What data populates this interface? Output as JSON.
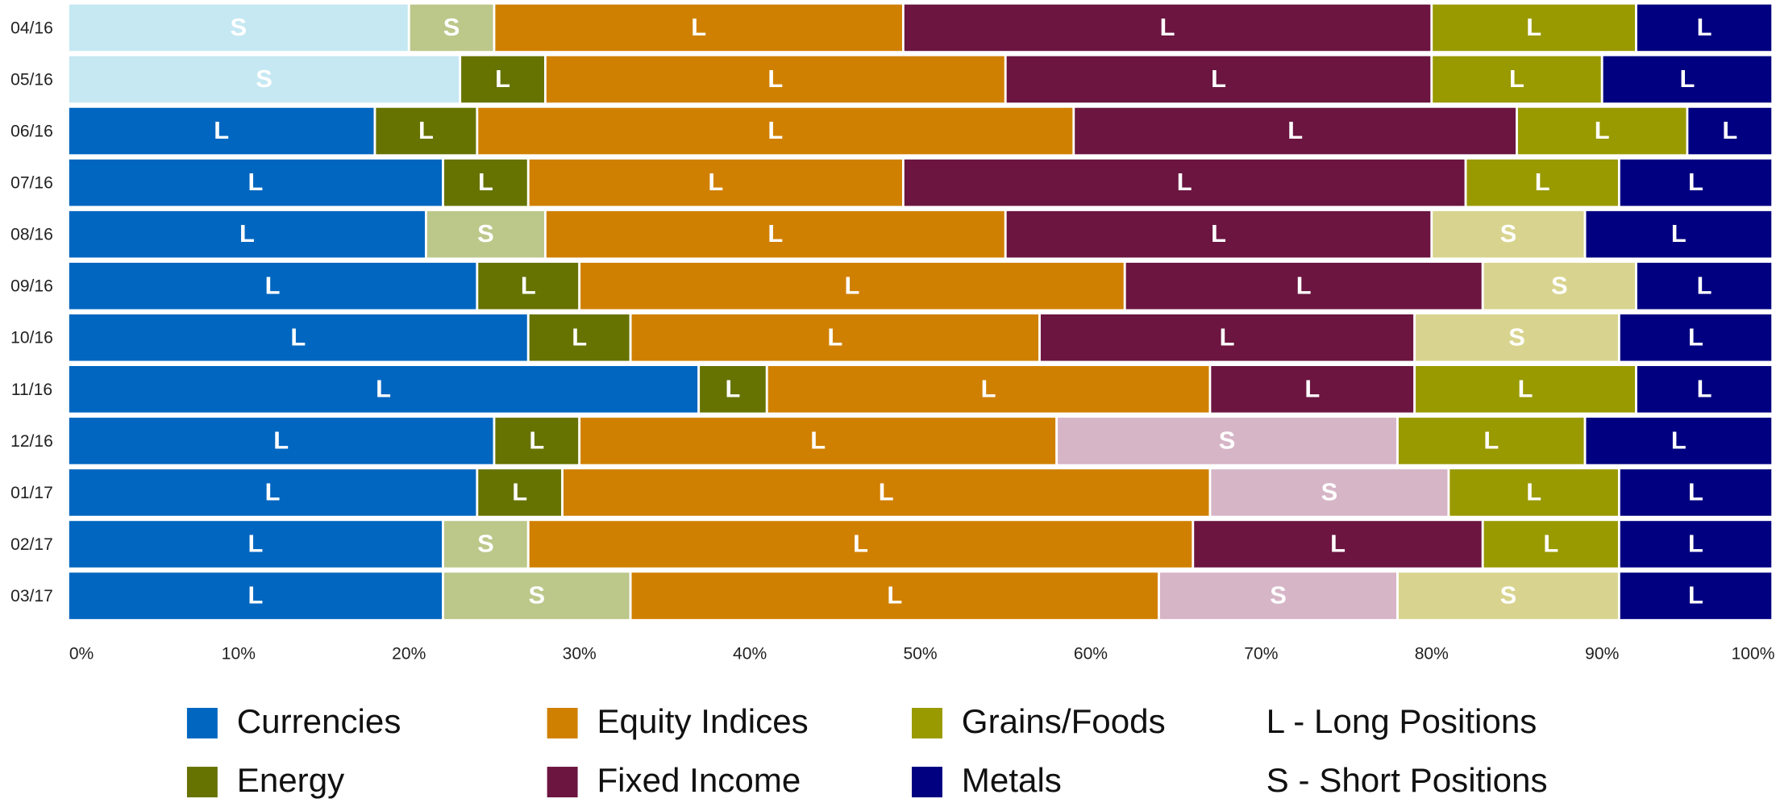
{
  "chart_data": {
    "type": "stacked-barh",
    "categories": [
      "04/16",
      "05/16",
      "06/16",
      "07/16",
      "08/16",
      "09/16",
      "10/16",
      "11/16",
      "12/16",
      "01/17",
      "02/17",
      "03/17"
    ],
    "series": [
      {
        "name": "Currencies",
        "color": "#0066c0",
        "short_color": "#c5e8f2",
        "values": [
          20,
          23,
          18,
          22,
          21,
          24,
          27,
          37,
          25,
          24,
          22,
          22
        ],
        "positions": [
          "S",
          "S",
          "L",
          "L",
          "L",
          "L",
          "L",
          "L",
          "L",
          "L",
          "L",
          "L"
        ]
      },
      {
        "name": "Energy",
        "color": "#667300",
        "short_color": "#bcc78a",
        "values": [
          5,
          5,
          6,
          5,
          7,
          6,
          6,
          4,
          5,
          5,
          5,
          11
        ],
        "positions": [
          "S",
          "L",
          "L",
          "L",
          "S",
          "L",
          "L",
          "L",
          "L",
          "L",
          "S",
          "S"
        ]
      },
      {
        "name": "Equity Indices",
        "color": "#d08000",
        "values": [
          24,
          27,
          35,
          22,
          27,
          32,
          24,
          26,
          28,
          38,
          39,
          31
        ],
        "positions": [
          "L",
          "L",
          "L",
          "L",
          "L",
          "L",
          "L",
          "L",
          "L",
          "L",
          "L",
          "L"
        ]
      },
      {
        "name": "Fixed Income",
        "color": "#6b1540",
        "short_color": "#d6b5c6",
        "values": [
          31,
          25,
          26,
          33,
          25,
          21,
          22,
          12,
          20,
          14,
          17,
          14
        ],
        "positions": [
          "L",
          "L",
          "L",
          "L",
          "L",
          "L",
          "L",
          "L",
          "S",
          "S",
          "L",
          "S"
        ]
      },
      {
        "name": "Grains/Foods",
        "color": "#999900",
        "short_color": "#d8d48f",
        "values": [
          12,
          10,
          10,
          9,
          9,
          9,
          12,
          13,
          11,
          10,
          8,
          13
        ],
        "positions": [
          "L",
          "L",
          "L",
          "L",
          "S",
          "S",
          "S",
          "L",
          "L",
          "L",
          "L",
          "S"
        ]
      },
      {
        "name": "Metals",
        "color": "#000080",
        "values": [
          8,
          10,
          5,
          9,
          11,
          8,
          9,
          8,
          11,
          9,
          9,
          9
        ],
        "positions": [
          "L",
          "L",
          "L",
          "L",
          "L",
          "L",
          "L",
          "L",
          "L",
          "L",
          "L",
          "L"
        ]
      }
    ],
    "xlim": [
      0,
      100
    ],
    "xticks": [
      {
        "value": 0,
        "label": "0%"
      },
      {
        "value": 10,
        "label": "10%"
      },
      {
        "value": 20,
        "label": "20%"
      },
      {
        "value": 30,
        "label": "30%"
      },
      {
        "value": 40,
        "label": "40%"
      },
      {
        "value": 50,
        "label": "50%"
      },
      {
        "value": 60,
        "label": "60%"
      },
      {
        "value": 70,
        "label": "70%"
      },
      {
        "value": 80,
        "label": "80%"
      },
      {
        "value": 90,
        "label": "90%"
      },
      {
        "value": 100,
        "label": "100%"
      }
    ],
    "legend_notes": [
      "L - Long Positions",
      "S - Short Positions"
    ]
  }
}
